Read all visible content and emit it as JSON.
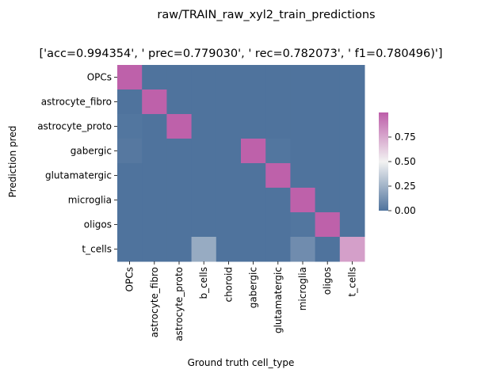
{
  "chart_data": {
    "type": "heatmap",
    "title": "raw/TRAIN_raw_xyl2_train_predictions",
    "subtitle": "['acc=0.994354', '  prec=0.779030', ' rec=0.782073', ' f1=0.780496)']",
    "xlabel": "Ground truth cell_type",
    "ylabel": "Prediction pred",
    "x_categories": [
      "OPCs",
      "astrocyte_fibro",
      "astrocyte_proto",
      "b_cells",
      "choroid",
      "gabergic",
      "glutamatergic",
      "microglia",
      "oligos",
      "t_cells"
    ],
    "y_categories": [
      "OPCs",
      "astrocyte_fibro",
      "astrocyte_proto",
      "gabergic",
      "glutamatergic",
      "microglia",
      "oligos",
      "t_cells"
    ],
    "values": [
      [
        0.99,
        0.0,
        0.0,
        0.0,
        0.0,
        0.0,
        0.0,
        0.0,
        0.0,
        0.0
      ],
      [
        0.0,
        0.99,
        0.0,
        0.0,
        0.0,
        0.0,
        0.0,
        0.0,
        0.0,
        0.0
      ],
      [
        0.01,
        0.0,
        0.99,
        0.0,
        0.0,
        0.0,
        0.0,
        0.0,
        0.0,
        0.0
      ],
      [
        0.02,
        0.0,
        0.0,
        0.0,
        0.0,
        0.99,
        0.01,
        0.0,
        0.0,
        0.0
      ],
      [
        0.0,
        0.0,
        0.0,
        0.0,
        0.0,
        0.0,
        0.99,
        0.0,
        0.0,
        0.0
      ],
      [
        0.0,
        0.0,
        0.0,
        0.0,
        0.0,
        0.0,
        0.0,
        0.99,
        0.0,
        0.0
      ],
      [
        0.0,
        0.0,
        0.0,
        0.0,
        0.0,
        0.0,
        0.0,
        0.01,
        0.99,
        0.0
      ],
      [
        0.0,
        0.0,
        0.0,
        0.22,
        0.0,
        0.0,
        0.0,
        0.1,
        0.0,
        0.78
      ]
    ],
    "colorbar": {
      "range": [
        0,
        1
      ],
      "ticks": [
        0.0,
        0.25,
        0.5,
        0.75
      ],
      "tick_labels": [
        "0.00",
        "0.25",
        "0.50",
        "0.75"
      ]
    },
    "colors": {
      "low": "#4f739d",
      "mid": "#f2f2f2",
      "high": "#bd5ea9"
    },
    "grid": false
  }
}
